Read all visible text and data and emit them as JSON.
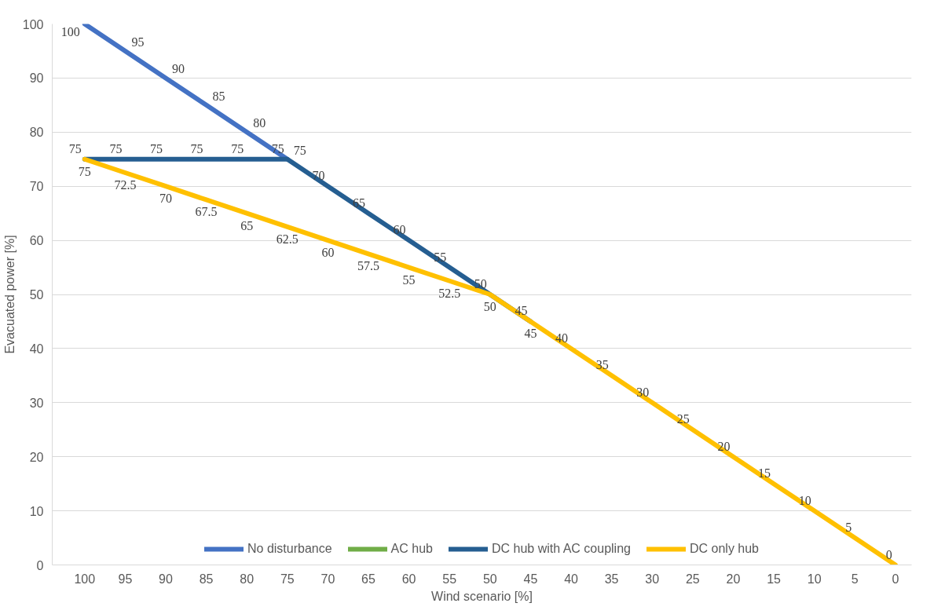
{
  "chart_data": {
    "type": "line",
    "xlabel": "Wind scenario [%]",
    "ylabel": "Evacuated power [%]",
    "categories": [
      "100",
      "95",
      "90",
      "85",
      "80",
      "75",
      "70",
      "65",
      "60",
      "55",
      "50",
      "45",
      "40",
      "35",
      "30",
      "25",
      "20",
      "15",
      "10",
      "5",
      "0"
    ],
    "ylim": [
      0,
      100
    ],
    "yticks": [
      0,
      10,
      20,
      30,
      40,
      50,
      60,
      70,
      80,
      90,
      100
    ],
    "grid": "y",
    "legend": "bottom",
    "data_labels": true,
    "marker": "none",
    "line_style": "solid",
    "series": [
      {
        "name": "No disturbance",
        "color": "#4472c4",
        "values": [
          100,
          95,
          90,
          85,
          80,
          75,
          null,
          null,
          null,
          null,
          null,
          null,
          null,
          null,
          null,
          null,
          null,
          null,
          null,
          null,
          null
        ]
      },
      {
        "name": "AC hub",
        "color": "#70ad47",
        "values": [
          null,
          null,
          null,
          null,
          null,
          null,
          null,
          null,
          null,
          null,
          null,
          null,
          null,
          null,
          null,
          null,
          null,
          null,
          null,
          null,
          null
        ]
      },
      {
        "name": "DC hub with AC coupling",
        "color": "#255e91",
        "values": [
          75,
          75,
          75,
          75,
          75,
          75,
          70,
          65,
          60,
          55,
          50,
          45,
          null,
          null,
          null,
          null,
          null,
          null,
          null,
          null,
          null
        ]
      },
      {
        "name": "DC only hub",
        "color": "#ffc000",
        "values": [
          75,
          72.5,
          70,
          67.5,
          65,
          62.5,
          60,
          57.5,
          55,
          52.5,
          50,
          45,
          40,
          35,
          30,
          25,
          20,
          15,
          10,
          5,
          0
        ]
      }
    ]
  }
}
